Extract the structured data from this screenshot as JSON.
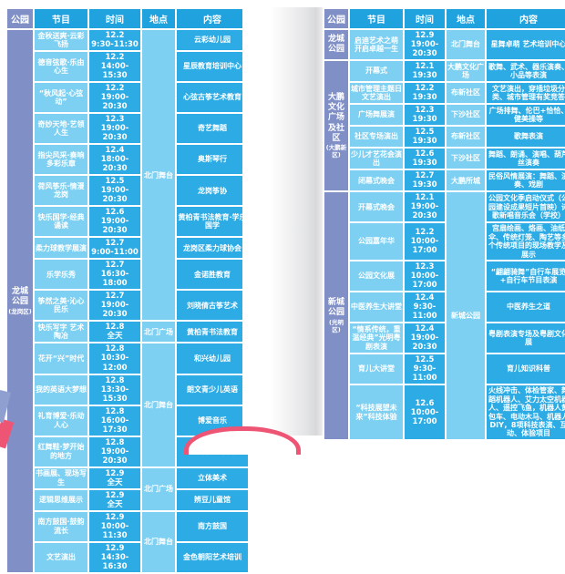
{
  "colors": {
    "slate": "#8090c6",
    "header_blue": "#1fa2de",
    "cell_blue": "#2cabe4",
    "sky": "#7ed0f2",
    "pink": "#ee5575"
  },
  "headers": [
    "公园",
    "节目",
    "时间",
    "地点",
    "内容"
  ],
  "left": {
    "groups": [
      {
        "park": {
          "name": "龙城公园",
          "sub": "(龙岗区)"
        },
        "locations": [
          {
            "label": "北门舞台",
            "span": 10
          },
          {
            "label": "北门广场",
            "span": 1
          },
          {
            "label": "北门舞台",
            "span": 4
          },
          {
            "label": "北门广场",
            "span": 2
          },
          {
            "label": "北门舞台",
            "span": 2
          }
        ],
        "rows": [
          {
            "program": "金秋送爽·云彩飞扬",
            "date": "12.2",
            "time": "9:30-11:30",
            "content": "云彩幼儿园"
          },
          {
            "program": "德音弦歌·乐由心生",
            "date": "12.2",
            "time": "14:00-15:30",
            "content": "星辰教育培训中心"
          },
          {
            "program": "“秋风起·心弦动”",
            "date": "12.2",
            "time": "19:00-20:30",
            "content": "心弦古筝艺术教育"
          },
          {
            "program": "奇妙天地·艺领人生",
            "date": "12.3",
            "time": "19:00-20:30",
            "content": "奇艺舞蹈"
          },
          {
            "program": "指尖风采·奏响多彩乐章",
            "date": "12.4",
            "time": "18:00-20:30",
            "content": "奥斯琴行"
          },
          {
            "program": "荷风筝乐·情漫龙岗",
            "date": "12.5",
            "time": "19:00-20:30",
            "content": "龙岗筝协"
          },
          {
            "program": "快乐国学·经典诵读",
            "date": "12.6",
            "time": "19:00-20:30",
            "content": "黄柏青书法教育·学乐国学"
          },
          {
            "program": "柔力球教学展演",
            "date": "12.7",
            "time": "9:00-11:00",
            "content": "龙岗区柔力球协会"
          },
          {
            "program": "乐学乐秀",
            "date": "12.7",
            "time": "16:30-18:00",
            "content": "金诺胜教育"
          },
          {
            "program": "筝然之美·沁心民乐",
            "date": "12.7",
            "time": "19:00-20:30",
            "content": "刘晓倩古筝艺术"
          },
          {
            "program": "快乐写字 艺术陶冶",
            "date": "12.8",
            "time": "全天",
            "content": "黄柏青书法教育"
          },
          {
            "program": "花开“兴”时代",
            "date": "12.8",
            "time": "10:30-12:00",
            "content": "和兴幼儿园"
          },
          {
            "program": "我的英语大梦想",
            "date": "12.8",
            "time": "13:30-15:30",
            "content": "朗文青少儿英语"
          },
          {
            "program": "礼育博爱·乐动人心",
            "date": "12.8",
            "time": "16:00-17:30",
            "content": "博爱音乐"
          },
          {
            "program": "红舞鞋·梦开始的地方",
            "date": "12.8",
            "time": "19:00-20:30",
            "content": "红舞鞋艺术团"
          },
          {
            "program": "书画展、现场写生",
            "date": "12.9",
            "time": "全天",
            "content": "立体美术"
          },
          {
            "program": "逻辑思维展示",
            "date": "12.9",
            "time": "全天",
            "content": "辨豆儿童馆"
          },
          {
            "program": "南方鼓国·鼓韵流长",
            "date": "12.9",
            "time": "10:00-11:30",
            "content": "南方鼓国"
          },
          {
            "program": "文艺演出",
            "date": "12.9",
            "time": "14:30-16:30",
            "content": "金色朝阳艺术培训"
          }
        ]
      }
    ]
  },
  "right": {
    "groups": [
      {
        "park": {
          "name": "龙城公园",
          "sub": ""
        },
        "locations": [
          {
            "label": "北门舞台",
            "span": 1
          }
        ],
        "rows": [
          {
            "program": "启迪艺术之萌 开启卓越一生",
            "date": "12.9",
            "time": "19:00-20:30",
            "content": "星舞卓萌 艺术培训中心"
          }
        ]
      },
      {
        "park": {
          "name": "大鹏文化广场及社区",
          "sub": "(大鹏新区)"
        },
        "locations": [
          {
            "label": "大鹏文化广场",
            "span": 1
          },
          {
            "label": "布新社区",
            "span": 1
          },
          {
            "label": "下沙社区",
            "span": 1
          },
          {
            "label": "布新社区",
            "span": 1
          },
          {
            "label": "下沙社区",
            "span": 1
          },
          {
            "label": "大鹏所城",
            "span": 1
          }
        ],
        "rows": [
          {
            "program": "开幕式",
            "date": "12.1",
            "time": "19:30",
            "content": "歌舞、武术、器乐演奏、小品等表演"
          },
          {
            "program": "城市管理主题日文艺演出",
            "date": "12.2",
            "time": "19:30",
            "content": "文艺演出，穿插垃圾分类、城市管理有奖竞答"
          },
          {
            "program": "广场舞展演",
            "date": "12.3",
            "time": "19:30",
            "content": "广场排舞、伦巴+恰恰、健美操等"
          },
          {
            "program": "社区专场演出",
            "date": "12.5",
            "time": "19:30",
            "content": "歌舞表演"
          },
          {
            "program": "少儿才艺花会演出",
            "date": "12.6",
            "time": "19:30",
            "content": "舞蹈、朗诵、演唱、葫芦丝演奏"
          },
          {
            "program": "闭幕式晚会",
            "date": "12.7",
            "time": "19:30",
            "content": "民俗风情展演：舞蹈、演奏、戏剧"
          }
        ]
      },
      {
        "park": {
          "name": "新城公园",
          "sub": "(光明区)"
        },
        "locations": [
          {
            "label": "新城公园",
            "span": 7
          }
        ],
        "rows": [
          {
            "program": "开幕式晚会",
            "date": "12.1",
            "time": "19:00-20:30",
            "content": "公园文化季启动仪式（公园建设成果短片首映）诗歌新唱音乐会（学校）"
          },
          {
            "program": "公园嘉年华",
            "date": "12.2",
            "time": "10:00-17:00",
            "content": "宫扇绘画、烙画、油纸伞、传统灯笼、陶艺等多个传统项目的现场教学及展示"
          },
          {
            "program": "公园文化展",
            "date": "12.3",
            "time": "10:00-17:00",
            "content": "“翩翩骑舞”自行车展览+自行车节目表演"
          },
          {
            "program": "中医养生大讲堂",
            "date": "12.4",
            "time": "9:30-11:00",
            "content": "中医养生之道"
          },
          {
            "program": "“情系传统，重温经典”光明粤剧表演",
            "date": "12.4",
            "time": "19:00-20:30",
            "content": "粤剧表演专场及粤剧文化展"
          },
          {
            "program": "育儿大讲堂",
            "date": "12.5",
            "time": "9:30-11:00",
            "content": "育儿知识科普"
          },
          {
            "program": "“科技展望未来”科技体验",
            "date": "12.6",
            "time": "10:00-17:00",
            "content": "火线冲击、体检管家、舞蹈机器人、艾力太空机器人、遥控飞鱼，机器人黄包车、电动木马、机器人DIY，8项科技表演、互动、体验项目"
          }
        ]
      }
    ]
  }
}
